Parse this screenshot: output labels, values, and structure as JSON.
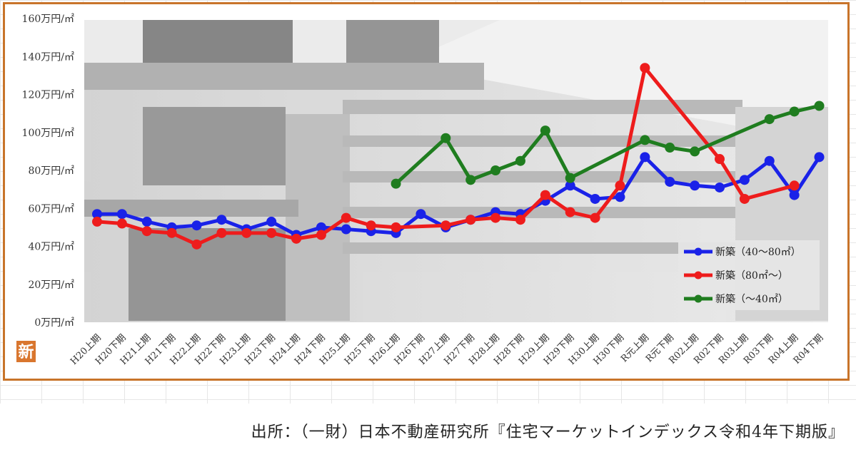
{
  "badge": {
    "text": "新"
  },
  "source_note": "出所：（一財）日本不動産研究所『住宅マーケットインデックス令和4年下期版』",
  "colors": {
    "frame": "#c8742a",
    "blue": "#1a22e8",
    "red": "#ee1c1c",
    "green": "#1f7d1f",
    "badge": "#d9762e"
  },
  "chart_data": {
    "type": "line",
    "title": "",
    "xlabel": "",
    "ylabel": "",
    "ylim": [
      0,
      160
    ],
    "yticks": [
      "0万円/㎡",
      "20万円/㎡",
      "40万円/㎡",
      "60万円/㎡",
      "80万円/㎡",
      "100万円/㎡",
      "120万円/㎡",
      "140万円/㎡",
      "160万円/㎡"
    ],
    "categories": [
      "H20上期",
      "H20下期",
      "H21上期",
      "H21下期",
      "H22上期",
      "H22下期",
      "H23上期",
      "H23下期",
      "H24上期",
      "H24下期",
      "H25上期",
      "H25下期",
      "H26上期",
      "H26下期",
      "H27上期",
      "H27下期",
      "H28上期",
      "H28下期",
      "H29上期",
      "H29下期",
      "H30上期",
      "H30下期",
      "R元上期",
      "R元下期",
      "R02上期",
      "R02下期",
      "R03上期",
      "R03下期",
      "R04上期",
      "R04下期"
    ],
    "legend_position": "bottom-right",
    "series": [
      {
        "name": "新築（40～80㎡）",
        "color": "#1a22e8",
        "values": [
          57,
          57,
          53,
          50,
          51,
          54,
          49,
          53,
          46,
          50,
          49,
          48,
          47,
          57,
          50,
          54,
          58,
          57,
          64,
          72,
          65,
          66,
          87,
          74,
          72,
          71,
          75,
          85,
          67,
          87
        ]
      },
      {
        "name": "新築（80㎡～）",
        "color": "#ee1c1c",
        "values": [
          53,
          52,
          48,
          47,
          41,
          47,
          47,
          47,
          44,
          46,
          55,
          51,
          50,
          null,
          51,
          54,
          55,
          54,
          67,
          58,
          55,
          72,
          134,
          null,
          null,
          86,
          65,
          null,
          72,
          null
        ]
      },
      {
        "name": "新築（～40㎡）",
        "color": "#1f7d1f",
        "values": [
          null,
          null,
          null,
          null,
          null,
          null,
          null,
          null,
          null,
          null,
          null,
          null,
          73,
          null,
          97,
          75,
          80,
          85,
          101,
          76,
          null,
          null,
          96,
          92,
          90,
          null,
          null,
          107,
          111,
          114
        ]
      }
    ]
  }
}
